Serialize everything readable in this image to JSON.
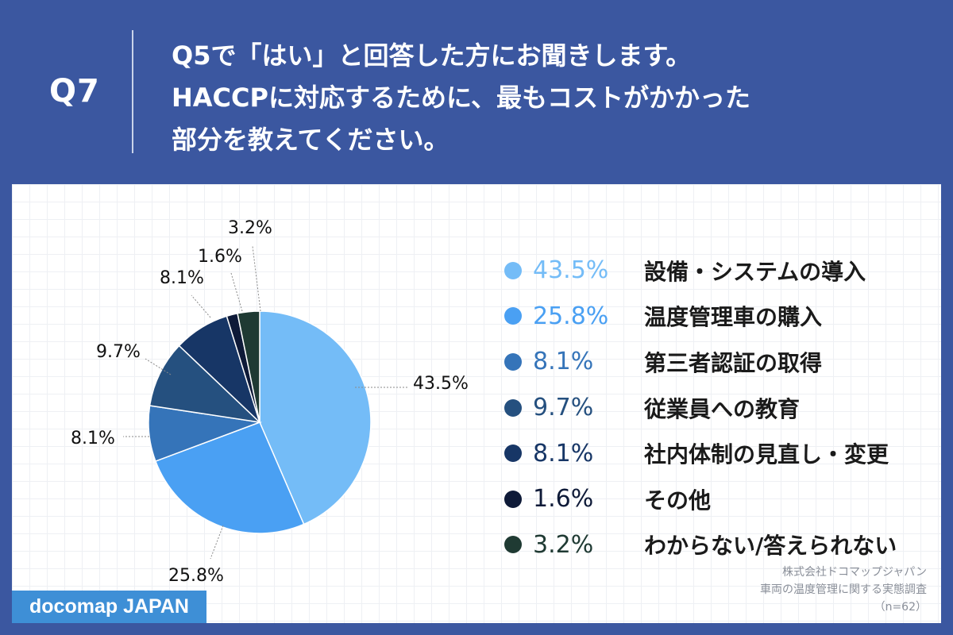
{
  "header": {
    "q_label": "Q7",
    "question_lines": [
      "Q5で「はい」と回答した方にお聞きします。",
      "HACCPに対応するために、最もコストがかかった",
      "部分を教えてください。"
    ]
  },
  "chart_data": {
    "type": "pie",
    "categories": [
      "設備・システムの導入",
      "温度管理車の購入",
      "第三者認証の取得",
      "従業員への教育",
      "社内体制の見直し・変更",
      "その他",
      "わからない/答えられない"
    ],
    "values": [
      43.5,
      25.8,
      8.1,
      9.7,
      8.1,
      1.6,
      3.2
    ],
    "labels": [
      "43.5%",
      "25.8%",
      "8.1%",
      "9.7%",
      "8.1%",
      "1.6%",
      "3.2%"
    ],
    "colors": [
      "#74bcf7",
      "#4aa0f3",
      "#3574b9",
      "#25507f",
      "#173666",
      "#0e1a38",
      "#1f3a33"
    ],
    "legend_pct_colors": [
      "#74bcf7",
      "#4aa0f3",
      "#3574b9",
      "#25507f",
      "#173666",
      "#0e1a38",
      "#1f3a33"
    ],
    "legend_position": "right",
    "start": "top",
    "direction": "clockwise"
  },
  "source": {
    "company": "株式会社ドコマップジャパン",
    "survey": "車両の温度管理に関する実態調査",
    "n": "（n=62）"
  },
  "brand": {
    "name": "docomap JAPAN"
  }
}
